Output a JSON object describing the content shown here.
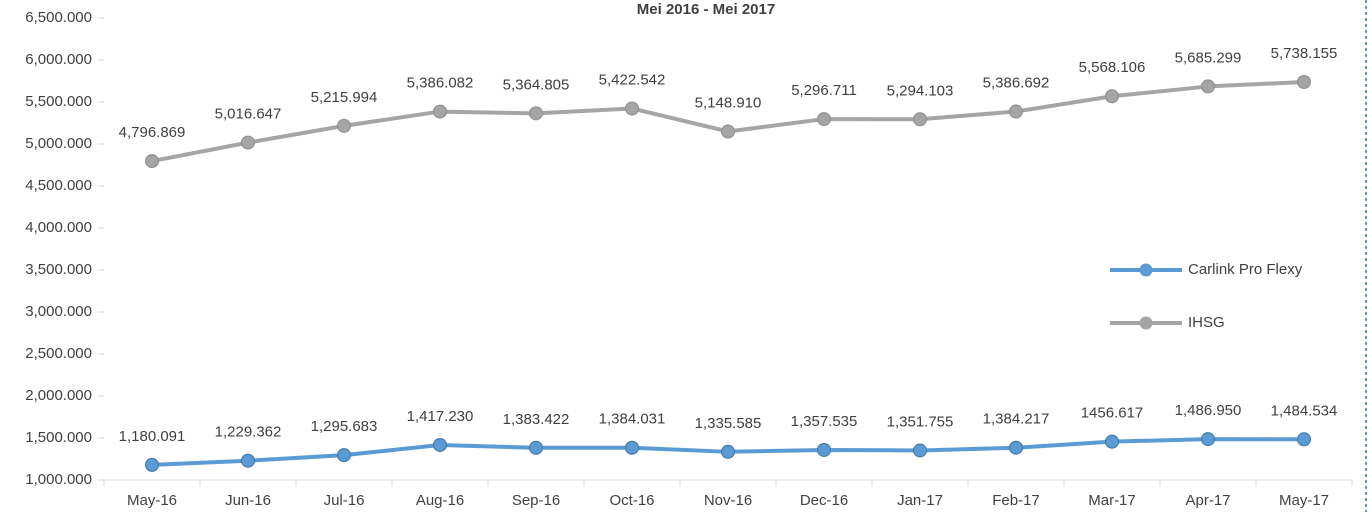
{
  "chart_data": {
    "type": "line",
    "title": "Mei 2016 - Mei 2017",
    "categories": [
      "May-16",
      "Jun-16",
      "Jul-16",
      "Aug-16",
      "Sep-16",
      "Oct-16",
      "Nov-16",
      "Dec-16",
      "Jan-17",
      "Feb-17",
      "Mar-17",
      "Apr-17",
      "May-17"
    ],
    "series": [
      {
        "name": "Carlink Pro Flexy",
        "color": "#5b9bd5",
        "values": [
          1180.091,
          1229.362,
          1295.683,
          1417.23,
          1383.422,
          1384.031,
          1335.585,
          1357.535,
          1351.755,
          1384.217,
          1456.617,
          1486.95,
          1484.534
        ],
        "value_labels": [
          "1,180.091",
          "1,229.362",
          "1,295.683",
          "1,417.230",
          "1,383.422",
          "1,384.031",
          "1,335.585",
          "1,357.535",
          "1,351.755",
          "1,384.217",
          "1456.617",
          "1,486.950",
          "1,484.534"
        ]
      },
      {
        "name": "IHSG",
        "color": "#a5a5a5",
        "values": [
          4796.869,
          5016.647,
          5215.994,
          5386.082,
          5364.805,
          5422.542,
          5148.91,
          5296.711,
          5294.103,
          5386.692,
          5568.106,
          5685.299,
          5738.155
        ],
        "value_labels": [
          "4,796.869",
          "5,016.647",
          "5,215.994",
          "5,386.082",
          "5,364.805",
          "5,422.542",
          "5,148.910",
          "5,296.711",
          "5,294.103",
          "5,386.692",
          "5,568.106",
          "5,685.299",
          "5,738.155"
        ]
      }
    ],
    "ylim": [
      1000,
      6500
    ],
    "yticks": [
      {
        "value": 1000,
        "label": "1,000.000"
      },
      {
        "value": 1500,
        "label": "1,500.000"
      },
      {
        "value": 2000,
        "label": "2,000.000"
      },
      {
        "value": 2500,
        "label": "2,500.000"
      },
      {
        "value": 3000,
        "label": "3,000.000"
      },
      {
        "value": 3500,
        "label": "3,500.000"
      },
      {
        "value": 4000,
        "label": "4,000.000"
      },
      {
        "value": 4500,
        "label": "4,500.000"
      },
      {
        "value": 5000,
        "label": "5,000.000"
      },
      {
        "value": 5500,
        "label": "5,500.000"
      },
      {
        "value": 6000,
        "label": "6,000.000"
      },
      {
        "value": 6500,
        "label": "6,500.000"
      }
    ],
    "grid": false,
    "legend": "right"
  }
}
